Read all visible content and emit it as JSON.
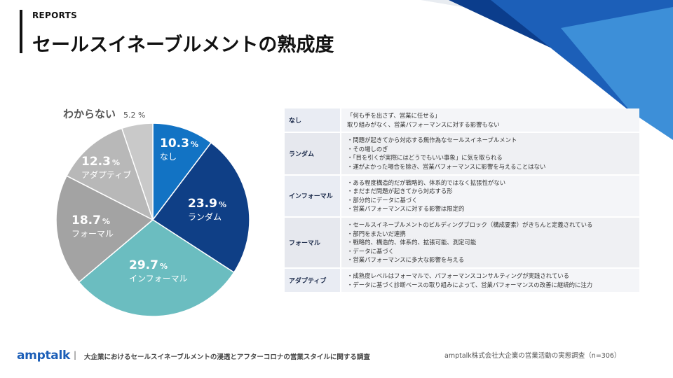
{
  "header": {
    "eyebrow": "REPORTS",
    "title": "セールスイネーブルメントの熟成度"
  },
  "colors": {
    "accent_dark": "#0b3d8c",
    "accent_mid": "#1c5fb8",
    "accent_light": "#3d8fd8"
  },
  "chart_data": {
    "type": "pie",
    "title": "",
    "slices": [
      {
        "label": "なし",
        "value": 10.3,
        "display": "10.3",
        "color": "#1273c4"
      },
      {
        "label": "ランダム",
        "value": 23.9,
        "display": "23.9",
        "color": "#0f3f86"
      },
      {
        "label": "インフォーマル",
        "value": 29.7,
        "display": "29.7",
        "color": "#6bbdc0"
      },
      {
        "label": "フォーマル",
        "value": 18.7,
        "display": "18.7",
        "color": "#a3a3a3"
      },
      {
        "label": "アダプティブ",
        "value": 12.3,
        "display": "12.3",
        "color": "#b8b8b8"
      },
      {
        "label": "わからない",
        "value": 5.2,
        "display": "5.2",
        "color": "#c9c9c9"
      }
    ],
    "unit": "%"
  },
  "table": {
    "rows": [
      {
        "label": "なし",
        "lines": [
          "「何も手を出さず、営業に任せる」",
          "取り組みがなく、営業パフォーマンスに対する影響もない"
        ]
      },
      {
        "label": "ランダム",
        "lines": [
          "・問題が起きてから対応する無作為なセールスイネーブルメント",
          "・その場しのぎ",
          "・「目を引くが実際にはどうでもいい事象」に気を取られる",
          "・運がよかった場合を除き、営業パフォーマンスに影響を与えることはない"
        ]
      },
      {
        "label": "インフォーマル",
        "lines": [
          "・ある程度構造的だが戦略的、体系的ではなく拡張性がない",
          "・まだまだ問題が起きてから対応する形",
          "・部分的にデータに基づく",
          "・営業パフォーマンスに対する影響は限定的"
        ]
      },
      {
        "label": "フォーマル",
        "lines": [
          "・セールスイネーブルメントのビルディングブロック（構成要素）がきちんと定義されている",
          "・部門をまたいだ連携",
          "・戦略的、構造的、体系的、拡張可能、測定可能",
          "・データに基づく",
          "・営業パフォーマンスに多大な影響を与える"
        ]
      },
      {
        "label": "アダプティブ",
        "lines": [
          "・成熟度レベルはフォーマルで、パフォーマンスコンサルティングが実践されている",
          "・データに基づく診断ベースの取り組みによって、営業パフォーマンスの改善に継続的に注力"
        ]
      }
    ]
  },
  "footer": {
    "logo": "amptalk",
    "separator": "|",
    "text": "大企業におけるセールスイネーブルメントの浸透とアフターコロナの営業スタイルに関する調査",
    "source": "amptalk株式会社大企業の営業活動の実態調査（n=306）"
  }
}
